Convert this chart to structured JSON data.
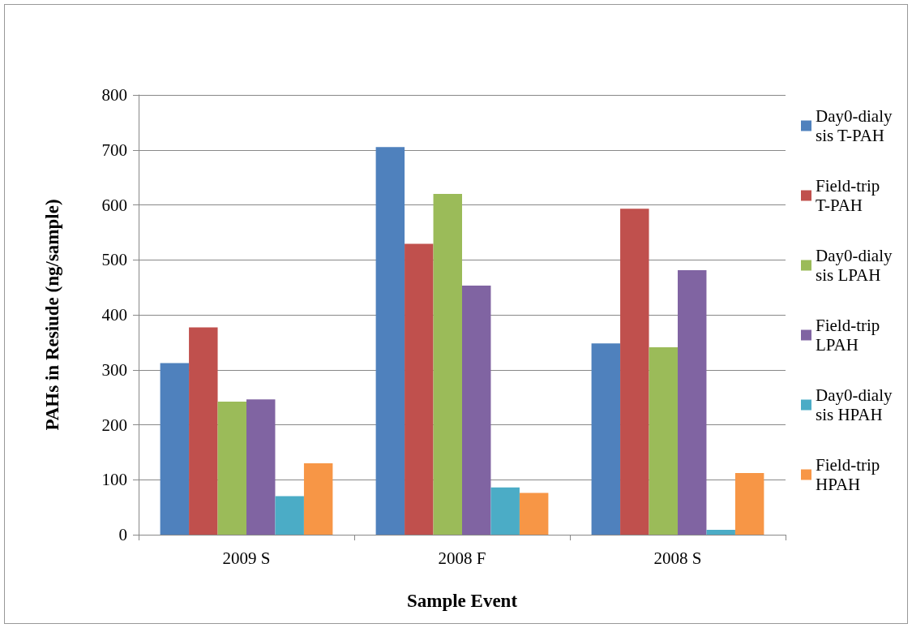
{
  "chart_data": {
    "type": "bar",
    "xlabel": "Sample Event",
    "ylabel": "PAHs in Resiude (ng/sample)",
    "categories": [
      "2009 S",
      "2008 F",
      "2008 S"
    ],
    "series": [
      {
        "name": "Day0-dialysis T-PAH",
        "color": "#4f81bd",
        "values": [
          312,
          705,
          348
        ]
      },
      {
        "name": "Field-trip T-PAH",
        "color": "#c0504d",
        "values": [
          377,
          529,
          593
        ]
      },
      {
        "name": "Day0-dialysis LPAH",
        "color": "#9bbb59",
        "values": [
          242,
          620,
          341
        ]
      },
      {
        "name": "Field-trip LPAH",
        "color": "#8064a2",
        "values": [
          246,
          453,
          481
        ]
      },
      {
        "name": "Day0-dialysis HPAH",
        "color": "#4bacc6",
        "values": [
          70,
          86,
          9
        ]
      },
      {
        "name": "Field-trip HPAH",
        "color": "#f79646",
        "values": [
          130,
          76,
          112
        ]
      }
    ],
    "ylim": [
      0,
      800
    ],
    "yticks": [
      0,
      100,
      200,
      300,
      400,
      500,
      600,
      700,
      800
    ],
    "grid": "y",
    "legend": "right"
  }
}
